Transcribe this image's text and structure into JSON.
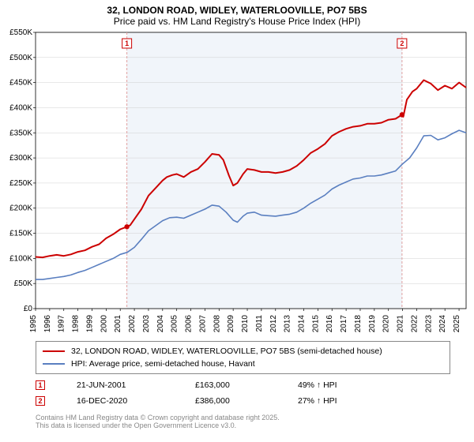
{
  "title_line1": "32, LONDON ROAD, WIDLEY, WATERLOOVILLE, PO7 5BS",
  "title_line2": "Price paid vs. HM Land Registry's House Price Index (HPI)",
  "chart": {
    "type": "line",
    "background_color": "#ffffff",
    "shade_band_color": "#f1f5fa",
    "xlim": [
      1995,
      2025.5
    ],
    "ylim": [
      0,
      550
    ],
    "yticks": [
      0,
      50,
      100,
      150,
      200,
      250,
      300,
      350,
      400,
      450,
      500,
      550
    ],
    "ytick_labels": [
      "£0",
      "£50K",
      "£100K",
      "£150K",
      "£200K",
      "£250K",
      "£300K",
      "£350K",
      "£400K",
      "£450K",
      "£500K",
      "£550K"
    ],
    "xticks": [
      1995,
      1996,
      1997,
      1998,
      1999,
      2000,
      2001,
      2002,
      2003,
      2004,
      2005,
      2006,
      2007,
      2008,
      2009,
      2010,
      2011,
      2012,
      2013,
      2014,
      2015,
      2016,
      2017,
      2018,
      2019,
      2020,
      2021,
      2022,
      2023,
      2024,
      2025
    ],
    "xtick_labels": [
      "1995",
      "1996",
      "1997",
      "1998",
      "1999",
      "2000",
      "2001",
      "2002",
      "2003",
      "2004",
      "2005",
      "2006",
      "2007",
      "2008",
      "2009",
      "2010",
      "2011",
      "2012",
      "2013",
      "2014",
      "2015",
      "2016",
      "2017",
      "2018",
      "2019",
      "2020",
      "2021",
      "2022",
      "2023",
      "2024",
      "2025"
    ],
    "shade_band_x": [
      2001.47,
      2020.96
    ],
    "grid_color": "#d0d0d0",
    "axis_fontsize": 10,
    "series": [
      {
        "name": "price_paid",
        "color": "#cc0000",
        "line_width": 2,
        "points": [
          [
            1995,
            103
          ],
          [
            1995.5,
            102
          ],
          [
            1996,
            105
          ],
          [
            1996.5,
            107
          ],
          [
            1997,
            105
          ],
          [
            1997.5,
            108
          ],
          [
            1998,
            113
          ],
          [
            1998.5,
            116
          ],
          [
            1999,
            123
          ],
          [
            1999.5,
            128
          ],
          [
            2000,
            140
          ],
          [
            2000.5,
            148
          ],
          [
            2001,
            158
          ],
          [
            2001.47,
            163
          ],
          [
            2001.7,
            166
          ],
          [
            2002,
            178
          ],
          [
            2002.5,
            198
          ],
          [
            2003,
            225
          ],
          [
            2003.5,
            240
          ],
          [
            2004,
            255
          ],
          [
            2004.3,
            262
          ],
          [
            2004.7,
            266
          ],
          [
            2005,
            268
          ],
          [
            2005.5,
            262
          ],
          [
            2006,
            272
          ],
          [
            2006.5,
            278
          ],
          [
            2007,
            292
          ],
          [
            2007.5,
            308
          ],
          [
            2008,
            306
          ],
          [
            2008.3,
            296
          ],
          [
            2008.7,
            265
          ],
          [
            2009,
            245
          ],
          [
            2009.3,
            250
          ],
          [
            2009.7,
            268
          ],
          [
            2010,
            278
          ],
          [
            2010.5,
            276
          ],
          [
            2011,
            272
          ],
          [
            2011.5,
            272
          ],
          [
            2012,
            270
          ],
          [
            2012.5,
            272
          ],
          [
            2013,
            276
          ],
          [
            2013.5,
            284
          ],
          [
            2014,
            296
          ],
          [
            2014.5,
            310
          ],
          [
            2015,
            318
          ],
          [
            2015.5,
            328
          ],
          [
            2016,
            344
          ],
          [
            2016.5,
            352
          ],
          [
            2017,
            358
          ],
          [
            2017.5,
            362
          ],
          [
            2018,
            364
          ],
          [
            2018.5,
            368
          ],
          [
            2019,
            368
          ],
          [
            2019.5,
            370
          ],
          [
            2020,
            376
          ],
          [
            2020.5,
            378
          ],
          [
            2020.96,
            386
          ],
          [
            2021.05,
            382
          ],
          [
            2021.3,
            416
          ],
          [
            2021.7,
            432
          ],
          [
            2022,
            438
          ],
          [
            2022.5,
            455
          ],
          [
            2023,
            448
          ],
          [
            2023.5,
            435
          ],
          [
            2024,
            444
          ],
          [
            2024.5,
            438
          ],
          [
            2025,
            450
          ],
          [
            2025.5,
            440
          ]
        ]
      },
      {
        "name": "hpi",
        "color": "#5a7fc0",
        "line_width": 1.6,
        "points": [
          [
            1995,
            58
          ],
          [
            1995.5,
            58
          ],
          [
            1996,
            60
          ],
          [
            1996.5,
            62
          ],
          [
            1997,
            64
          ],
          [
            1997.5,
            67
          ],
          [
            1998,
            72
          ],
          [
            1998.5,
            76
          ],
          [
            1999,
            82
          ],
          [
            1999.5,
            88
          ],
          [
            2000,
            94
          ],
          [
            2000.5,
            100
          ],
          [
            2001,
            108
          ],
          [
            2001.5,
            112
          ],
          [
            2002,
            122
          ],
          [
            2002.5,
            138
          ],
          [
            2003,
            155
          ],
          [
            2003.5,
            165
          ],
          [
            2004,
            175
          ],
          [
            2004.5,
            181
          ],
          [
            2005,
            182
          ],
          [
            2005.5,
            180
          ],
          [
            2006,
            186
          ],
          [
            2006.5,
            192
          ],
          [
            2007,
            198
          ],
          [
            2007.5,
            206
          ],
          [
            2008,
            204
          ],
          [
            2008.5,
            192
          ],
          [
            2009,
            176
          ],
          [
            2009.3,
            172
          ],
          [
            2009.7,
            184
          ],
          [
            2010,
            190
          ],
          [
            2010.5,
            192
          ],
          [
            2011,
            186
          ],
          [
            2011.5,
            185
          ],
          [
            2012,
            184
          ],
          [
            2012.5,
            186
          ],
          [
            2013,
            188
          ],
          [
            2013.5,
            192
          ],
          [
            2014,
            200
          ],
          [
            2014.5,
            210
          ],
          [
            2015,
            218
          ],
          [
            2015.5,
            226
          ],
          [
            2016,
            238
          ],
          [
            2016.5,
            246
          ],
          [
            2017,
            252
          ],
          [
            2017.5,
            258
          ],
          [
            2018,
            260
          ],
          [
            2018.5,
            264
          ],
          [
            2019,
            264
          ],
          [
            2019.5,
            266
          ],
          [
            2020,
            270
          ],
          [
            2020.5,
            274
          ],
          [
            2021,
            288
          ],
          [
            2021.5,
            300
          ],
          [
            2022,
            320
          ],
          [
            2022.5,
            344
          ],
          [
            2023,
            345
          ],
          [
            2023.5,
            336
          ],
          [
            2024,
            340
          ],
          [
            2024.5,
            348
          ],
          [
            2025,
            355
          ],
          [
            2025.5,
            350
          ]
        ]
      }
    ],
    "event_markers": [
      {
        "n": "1",
        "x": 2001.47,
        "y": 163,
        "color": "#cc0000",
        "line_color": "#e0a0a0"
      },
      {
        "n": "2",
        "x": 2020.96,
        "y": 386,
        "color": "#cc0000",
        "line_color": "#e0a0a0"
      }
    ]
  },
  "legend": [
    {
      "color": "#cc0000",
      "label": "32, LONDON ROAD, WIDLEY, WATERLOOVILLE, PO7 5BS (semi-detached house)"
    },
    {
      "color": "#5a7fc0",
      "label": "HPI: Average price, semi-detached house, Havant"
    }
  ],
  "events": [
    {
      "n": "1",
      "color": "#cc0000",
      "date": "21-JUN-2001",
      "price": "£163,000",
      "hpi": "49% ↑ HPI"
    },
    {
      "n": "2",
      "color": "#cc0000",
      "date": "16-DEC-2020",
      "price": "£386,000",
      "hpi": "27% ↑ HPI"
    }
  ],
  "footer_line1": "Contains HM Land Registry data © Crown copyright and database right 2025.",
  "footer_line2": "This data is licensed under the Open Government Licence v3.0."
}
